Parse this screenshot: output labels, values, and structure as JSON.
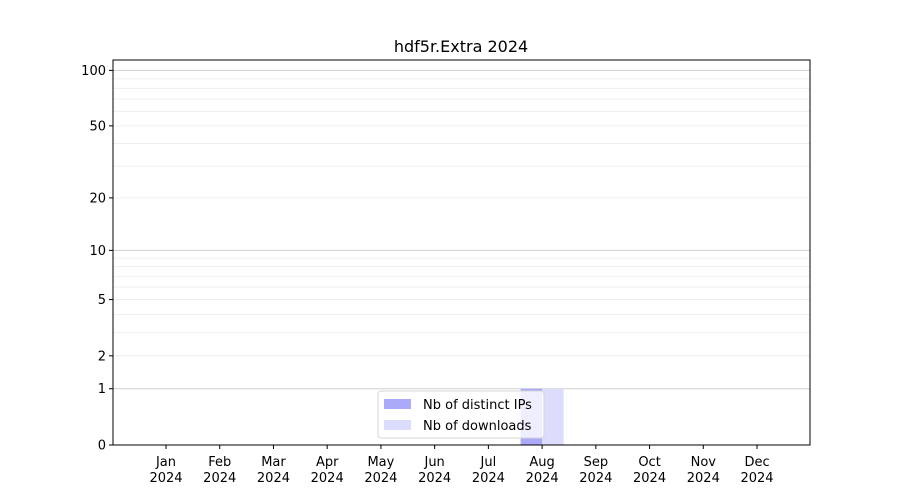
{
  "chart_data": {
    "type": "bar",
    "title": "hdf5r.Extra 2024",
    "xlabel": "",
    "ylabel": "",
    "y_scale": "log(1+y)",
    "ylim": [
      0,
      114
    ],
    "y_ticks": [
      0,
      1,
      2,
      5,
      10,
      20,
      50,
      100
    ],
    "grid": true,
    "legend_position": "bottom-center",
    "categories": [
      "Jan\n2024",
      "Feb\n2024",
      "Mar\n2024",
      "Apr\n2024",
      "May\n2024",
      "Jun\n2024",
      "Jul\n2024",
      "Aug\n2024",
      "Sep\n2024",
      "Oct\n2024",
      "Nov\n2024",
      "Dec\n2024"
    ],
    "series": [
      {
        "name": "Nb of distinct IPs",
        "color": "#aaaaf8",
        "values": [
          0,
          0,
          0,
          0,
          0,
          0,
          0,
          1,
          0,
          0,
          0,
          0
        ]
      },
      {
        "name": "Nb of downloads",
        "color": "#dcdcfc",
        "values": [
          0,
          0,
          0,
          0,
          0,
          0,
          0,
          1,
          0,
          0,
          0,
          0
        ]
      }
    ]
  }
}
